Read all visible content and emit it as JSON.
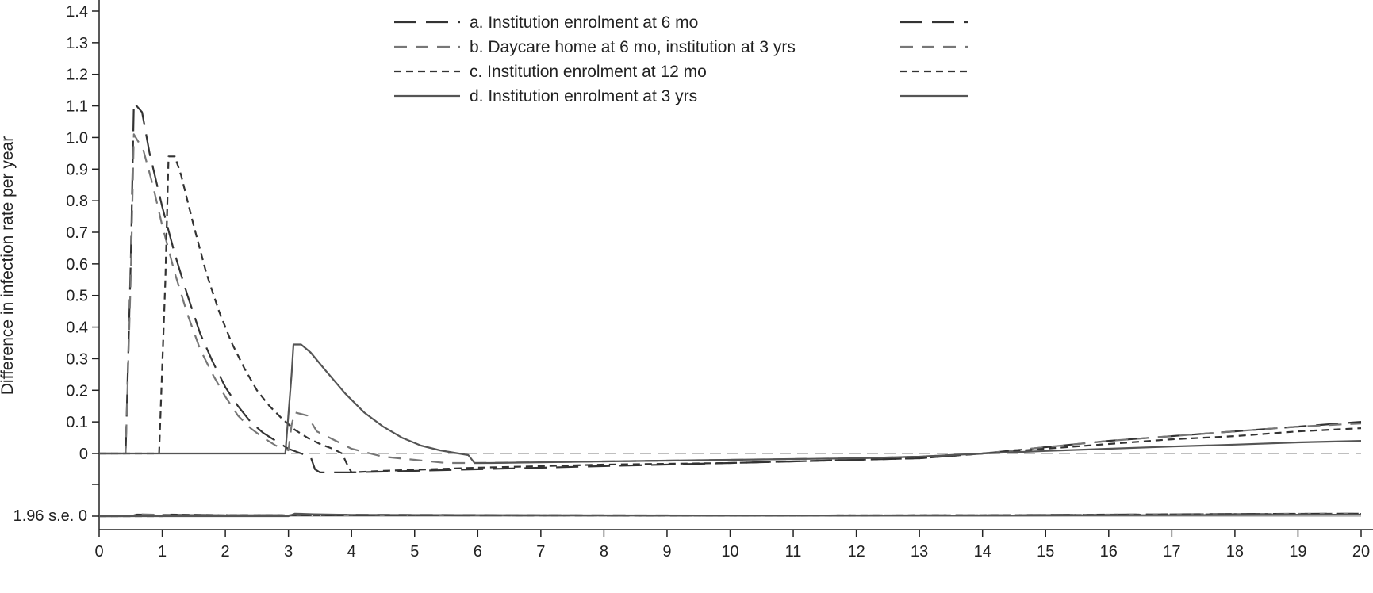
{
  "chart_data": {
    "type": "line",
    "title": "",
    "xlabel": "",
    "ylabel": "Difference in infection rate per year",
    "xlim": [
      0,
      20
    ],
    "ylim": [
      0,
      1.4
    ],
    "grid": false,
    "legend_position": "top-center",
    "x_ticks": [
      "0",
      "1",
      "2",
      "3",
      "4",
      "5",
      "6",
      "7",
      "8",
      "9",
      "10",
      "11",
      "12",
      "13",
      "14",
      "15",
      "16",
      "17",
      "18",
      "19",
      "20"
    ],
    "y_ticks": [
      "0",
      "0.1",
      "0.2",
      "0.3",
      "0.4",
      "0.5",
      "0.6",
      "0.7",
      "0.8",
      "0.9",
      "1.0",
      "1.1",
      "1.2",
      "1.3",
      "1.4"
    ],
    "se_panel_label": "1.96 s.e. 0",
    "colors": {
      "dark": "#333333",
      "gray": "#777777",
      "reference": "#aaaaaa"
    },
    "series": [
      {
        "name": "a. Institution enrolment at 6 mo",
        "style": "long-dash",
        "color": "#333333",
        "points": [
          [
            0,
            0
          ],
          [
            0.42,
            0
          ],
          [
            0.5,
            0.6
          ],
          [
            0.55,
            1.11
          ],
          [
            0.68,
            1.08
          ],
          [
            0.8,
            0.95
          ],
          [
            1.0,
            0.78
          ],
          [
            1.2,
            0.63
          ],
          [
            1.4,
            0.5
          ],
          [
            1.6,
            0.38
          ],
          [
            1.8,
            0.29
          ],
          [
            2.0,
            0.21
          ],
          [
            2.2,
            0.15
          ],
          [
            2.4,
            0.1
          ],
          [
            2.6,
            0.065
          ],
          [
            2.8,
            0.04
          ],
          [
            3.0,
            0.015
          ],
          [
            3.2,
            0.0
          ],
          [
            3.35,
            -0.01
          ],
          [
            3.42,
            -0.05
          ],
          [
            3.5,
            -0.06
          ],
          [
            4.0,
            -0.06
          ],
          [
            6.0,
            -0.05
          ],
          [
            8.0,
            -0.04
          ],
          [
            10.0,
            -0.03
          ],
          [
            12.0,
            -0.02
          ],
          [
            13.0,
            -0.015
          ],
          [
            14.0,
            0.0
          ],
          [
            15.0,
            0.02
          ],
          [
            16.0,
            0.04
          ],
          [
            17.0,
            0.055
          ],
          [
            18.0,
            0.07
          ],
          [
            19.0,
            0.085
          ],
          [
            20.0,
            0.1
          ]
        ],
        "se": [
          [
            0,
            0
          ],
          [
            0.5,
            0.0
          ],
          [
            0.6,
            0.005
          ],
          [
            1.0,
            0.004
          ],
          [
            3.0,
            0.003
          ],
          [
            10.0,
            0.002
          ],
          [
            14.0,
            0.003
          ],
          [
            16.0,
            0.005
          ],
          [
            18.0,
            0.007
          ],
          [
            20.0,
            0.008
          ]
        ]
      },
      {
        "name": "b. Daycare home at 6 mo, institution at 3 yrs",
        "style": "medium-dash",
        "color": "#777777",
        "points": [
          [
            0,
            0
          ],
          [
            0.42,
            0
          ],
          [
            0.5,
            0.55
          ],
          [
            0.55,
            1.01
          ],
          [
            0.7,
            0.96
          ],
          [
            0.85,
            0.85
          ],
          [
            1.0,
            0.72
          ],
          [
            1.2,
            0.57
          ],
          [
            1.4,
            0.44
          ],
          [
            1.6,
            0.33
          ],
          [
            1.8,
            0.25
          ],
          [
            2.0,
            0.18
          ],
          [
            2.2,
            0.12
          ],
          [
            2.4,
            0.08
          ],
          [
            2.6,
            0.05
          ],
          [
            2.8,
            0.025
          ],
          [
            3.0,
            0.01
          ],
          [
            3.05,
            0.09
          ],
          [
            3.1,
            0.13
          ],
          [
            3.3,
            0.12
          ],
          [
            3.45,
            0.07
          ],
          [
            3.8,
            0.035
          ],
          [
            4.0,
            0.015
          ],
          [
            4.5,
            -0.01
          ],
          [
            5.0,
            -0.02
          ],
          [
            5.5,
            -0.03
          ],
          [
            6.0,
            -0.03
          ],
          [
            8.0,
            -0.025
          ],
          [
            10.0,
            -0.02
          ],
          [
            12.0,
            -0.015
          ],
          [
            13.0,
            -0.01
          ],
          [
            14.0,
            0.0
          ],
          [
            15.0,
            0.02
          ],
          [
            16.0,
            0.04
          ],
          [
            17.0,
            0.055
          ],
          [
            18.0,
            0.07
          ],
          [
            19.0,
            0.085
          ],
          [
            20.0,
            0.095
          ]
        ],
        "se": [
          [
            0,
            0
          ],
          [
            0.5,
            0.0
          ],
          [
            0.6,
            0.006
          ],
          [
            1.0,
            0.004
          ],
          [
            3.0,
            0.003
          ],
          [
            3.2,
            0.005
          ],
          [
            10.0,
            0.002
          ],
          [
            14.0,
            0.003
          ],
          [
            16.0,
            0.005
          ],
          [
            18.0,
            0.007
          ],
          [
            20.0,
            0.008
          ]
        ]
      },
      {
        "name": "c. Institution enrolment at 12 mo",
        "style": "short-dash",
        "color": "#333333",
        "points": [
          [
            0,
            0
          ],
          [
            0.95,
            0
          ],
          [
            1.05,
            0.55
          ],
          [
            1.1,
            0.94
          ],
          [
            1.2,
            0.94
          ],
          [
            1.3,
            0.88
          ],
          [
            1.5,
            0.72
          ],
          [
            1.7,
            0.57
          ],
          [
            1.9,
            0.45
          ],
          [
            2.1,
            0.35
          ],
          [
            2.3,
            0.27
          ],
          [
            2.5,
            0.2
          ],
          [
            2.7,
            0.15
          ],
          [
            2.9,
            0.11
          ],
          [
            3.1,
            0.075
          ],
          [
            3.3,
            0.05
          ],
          [
            3.5,
            0.03
          ],
          [
            3.7,
            0.015
          ],
          [
            3.85,
            0.0
          ],
          [
            3.92,
            -0.03
          ],
          [
            4.0,
            -0.06
          ],
          [
            4.5,
            -0.055
          ],
          [
            6.0,
            -0.045
          ],
          [
            8.0,
            -0.035
          ],
          [
            10.0,
            -0.03
          ],
          [
            12.0,
            -0.02
          ],
          [
            13.0,
            -0.015
          ],
          [
            14.0,
            0.0
          ],
          [
            15.0,
            0.015
          ],
          [
            16.0,
            0.03
          ],
          [
            17.0,
            0.045
          ],
          [
            18.0,
            0.055
          ],
          [
            19.0,
            0.07
          ],
          [
            20.0,
            0.08
          ]
        ],
        "se": [
          [
            0,
            0
          ],
          [
            1.0,
            0.0
          ],
          [
            1.1,
            0.005
          ],
          [
            2.0,
            0.003
          ],
          [
            4.0,
            0.003
          ],
          [
            10.0,
            0.002
          ],
          [
            14.0,
            0.003
          ],
          [
            16.0,
            0.004
          ],
          [
            18.0,
            0.006
          ],
          [
            20.0,
            0.007
          ]
        ]
      },
      {
        "name": "d. Institution enrolment at 3 yrs",
        "style": "solid",
        "color": "#555555",
        "points": [
          [
            0,
            0
          ],
          [
            2.95,
            0
          ],
          [
            3.05,
            0.25
          ],
          [
            3.08,
            0.345
          ],
          [
            3.2,
            0.345
          ],
          [
            3.35,
            0.32
          ],
          [
            3.6,
            0.26
          ],
          [
            3.9,
            0.19
          ],
          [
            4.2,
            0.13
          ],
          [
            4.5,
            0.085
          ],
          [
            4.8,
            0.05
          ],
          [
            5.1,
            0.025
          ],
          [
            5.4,
            0.01
          ],
          [
            5.7,
            0.0
          ],
          [
            5.85,
            -0.005
          ],
          [
            5.95,
            -0.03
          ],
          [
            6.2,
            -0.03
          ],
          [
            8.0,
            -0.025
          ],
          [
            10.0,
            -0.02
          ],
          [
            12.0,
            -0.015
          ],
          [
            13.0,
            -0.01
          ],
          [
            14.0,
            0.0
          ],
          [
            15.0,
            0.008
          ],
          [
            16.0,
            0.015
          ],
          [
            17.0,
            0.022
          ],
          [
            18.0,
            0.028
          ],
          [
            19.0,
            0.035
          ],
          [
            20.0,
            0.04
          ]
        ],
        "se": [
          [
            0,
            0
          ],
          [
            3.0,
            0.0
          ],
          [
            3.1,
            0.008
          ],
          [
            3.4,
            0.006
          ],
          [
            4.0,
            0.004
          ],
          [
            10.0,
            0.002
          ],
          [
            14.0,
            0.002
          ],
          [
            16.0,
            0.003
          ],
          [
            18.0,
            0.004
          ],
          [
            20.0,
            0.005
          ]
        ]
      }
    ]
  }
}
